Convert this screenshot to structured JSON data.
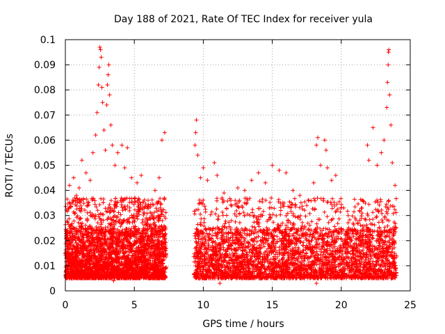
{
  "chart_data": {
    "type": "scatter",
    "title": "Day 188 of 2021, Rate Of TEC Index for receiver yula",
    "xlabel": "GPS time / hours",
    "ylabel": "ROTI / TECUs",
    "xlim": [
      0,
      25
    ],
    "ylim": [
      0,
      0.1
    ],
    "x_ticks": [
      0,
      5,
      10,
      15,
      20,
      25
    ],
    "x_tick_labels": [
      "0",
      "5",
      "10",
      "15",
      "20",
      "25"
    ],
    "y_ticks": [
      0,
      0.01,
      0.02,
      0.03,
      0.04,
      0.05,
      0.06,
      0.07,
      0.08,
      0.09,
      0.1
    ],
    "y_tick_labels": [
      "0",
      "0.01",
      "0.02",
      "0.03",
      "0.04",
      "0.05",
      "0.06",
      "0.07",
      "0.08",
      "0.09",
      "0.1"
    ],
    "grid": true,
    "marker": "+",
    "color": "#ff0000",
    "series": [
      {
        "segments": [
          {
            "x_start": 0.0,
            "x_end": 7.3
          },
          {
            "x_start": 9.3,
            "x_end": 24.0
          }
        ],
        "typical_range": [
          0.005,
          0.025
        ],
        "points": [
          {
            "x": 0.3,
            "y": 0.042
          },
          {
            "x": 0.6,
            "y": 0.045
          },
          {
            "x": 0.8,
            "y": 0.038
          },
          {
            "x": 1.0,
            "y": 0.041
          },
          {
            "x": 1.2,
            "y": 0.052
          },
          {
            "x": 1.5,
            "y": 0.047
          },
          {
            "x": 1.8,
            "y": 0.044
          },
          {
            "x": 2.0,
            "y": 0.055
          },
          {
            "x": 2.2,
            "y": 0.062
          },
          {
            "x": 2.3,
            "y": 0.071
          },
          {
            "x": 2.4,
            "y": 0.082
          },
          {
            "x": 2.45,
            "y": 0.089
          },
          {
            "x": 2.5,
            "y": 0.097
          },
          {
            "x": 2.55,
            "y": 0.096
          },
          {
            "x": 2.6,
            "y": 0.093
          },
          {
            "x": 2.65,
            "y": 0.081
          },
          {
            "x": 2.7,
            "y": 0.075
          },
          {
            "x": 2.8,
            "y": 0.064
          },
          {
            "x": 2.9,
            "y": 0.056
          },
          {
            "x": 3.0,
            "y": 0.074
          },
          {
            "x": 3.05,
            "y": 0.082
          },
          {
            "x": 3.1,
            "y": 0.086
          },
          {
            "x": 3.15,
            "y": 0.09
          },
          {
            "x": 3.2,
            "y": 0.078
          },
          {
            "x": 3.3,
            "y": 0.066
          },
          {
            "x": 3.4,
            "y": 0.058
          },
          {
            "x": 3.6,
            "y": 0.05
          },
          {
            "x": 3.8,
            "y": 0.055
          },
          {
            "x": 4.1,
            "y": 0.058
          },
          {
            "x": 4.3,
            "y": 0.049
          },
          {
            "x": 4.5,
            "y": 0.057
          },
          {
            "x": 4.8,
            "y": 0.045
          },
          {
            "x": 5.2,
            "y": 0.043
          },
          {
            "x": 5.5,
            "y": 0.046
          },
          {
            "x": 6.0,
            "y": 0.036
          },
          {
            "x": 6.5,
            "y": 0.04
          },
          {
            "x": 6.8,
            "y": 0.045
          },
          {
            "x": 7.0,
            "y": 0.06
          },
          {
            "x": 7.2,
            "y": 0.063
          },
          {
            "x": 9.4,
            "y": 0.058
          },
          {
            "x": 9.45,
            "y": 0.063
          },
          {
            "x": 9.5,
            "y": 0.068
          },
          {
            "x": 9.6,
            "y": 0.054
          },
          {
            "x": 9.8,
            "y": 0.045
          },
          {
            "x": 10.0,
            "y": 0.049
          },
          {
            "x": 10.3,
            "y": 0.044
          },
          {
            "x": 10.8,
            "y": 0.051
          },
          {
            "x": 11.0,
            "y": 0.046
          },
          {
            "x": 11.5,
            "y": 0.039
          },
          {
            "x": 12.0,
            "y": 0.036
          },
          {
            "x": 12.5,
            "y": 0.041
          },
          {
            "x": 13.0,
            "y": 0.04
          },
          {
            "x": 13.5,
            "y": 0.044
          },
          {
            "x": 14.0,
            "y": 0.047
          },
          {
            "x": 14.5,
            "y": 0.043
          },
          {
            "x": 15.0,
            "y": 0.05
          },
          {
            "x": 15.5,
            "y": 0.048
          },
          {
            "x": 16.0,
            "y": 0.047
          },
          {
            "x": 16.5,
            "y": 0.04
          },
          {
            "x": 17.0,
            "y": 0.038
          },
          {
            "x": 17.5,
            "y": 0.034
          },
          {
            "x": 18.0,
            "y": 0.043
          },
          {
            "x": 18.2,
            "y": 0.058
          },
          {
            "x": 18.3,
            "y": 0.061
          },
          {
            "x": 18.5,
            "y": 0.05
          },
          {
            "x": 18.8,
            "y": 0.06
          },
          {
            "x": 18.9,
            "y": 0.056
          },
          {
            "x": 19.0,
            "y": 0.049
          },
          {
            "x": 19.3,
            "y": 0.044
          },
          {
            "x": 19.6,
            "y": 0.046
          },
          {
            "x": 20.0,
            "y": 0.033
          },
          {
            "x": 20.5,
            "y": 0.03
          },
          {
            "x": 21.0,
            "y": 0.029
          },
          {
            "x": 21.5,
            "y": 0.033
          },
          {
            "x": 21.9,
            "y": 0.058
          },
          {
            "x": 22.0,
            "y": 0.052
          },
          {
            "x": 22.3,
            "y": 0.065
          },
          {
            "x": 22.6,
            "y": 0.05
          },
          {
            "x": 22.9,
            "y": 0.055
          },
          {
            "x": 23.1,
            "y": 0.06
          },
          {
            "x": 23.3,
            "y": 0.073
          },
          {
            "x": 23.35,
            "y": 0.083
          },
          {
            "x": 23.4,
            "y": 0.09
          },
          {
            "x": 23.42,
            "y": 0.095
          },
          {
            "x": 23.45,
            "y": 0.096
          },
          {
            "x": 23.5,
            "y": 0.078
          },
          {
            "x": 23.6,
            "y": 0.066
          },
          {
            "x": 23.7,
            "y": 0.051
          },
          {
            "x": 23.9,
            "y": 0.042
          },
          {
            "x": 18.2,
            "y": 0.003
          },
          {
            "x": 11.2,
            "y": 0.003
          },
          {
            "x": 3.5,
            "y": 0.004
          }
        ]
      }
    ]
  }
}
